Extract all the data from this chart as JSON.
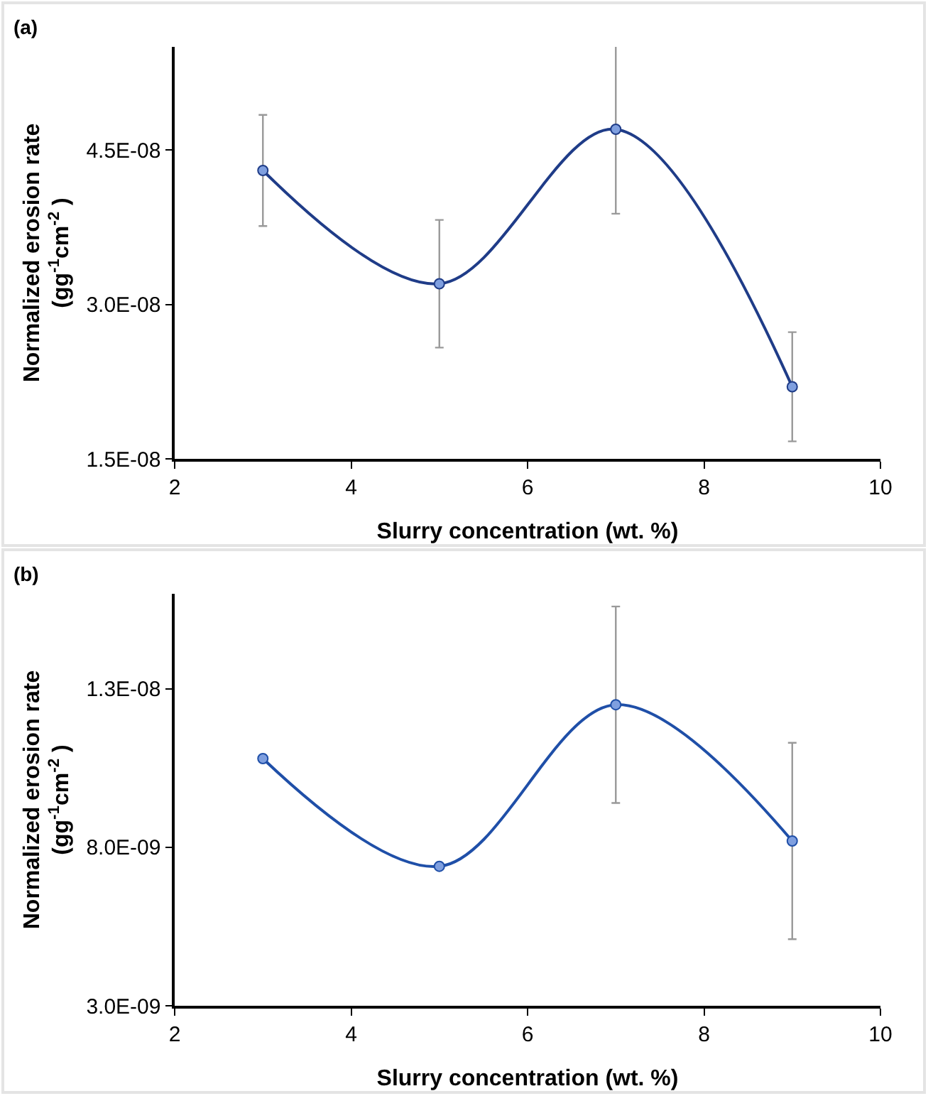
{
  "chart_data": [
    {
      "type": "line",
      "title": "(a)",
      "xlabel": "Slurry concentration (wt. %)",
      "ylabel": "Normalized erosion rate (gg$^{-1}$cm$^{-2}$ )",
      "x": [
        3,
        5,
        7,
        9
      ],
      "series": [
        {
          "color": "#1f3c88",
          "values": [
            4.3e-08,
            3.2e-08,
            4.7e-08,
            2.2e-08
          ],
          "errors": [
            5.4e-09,
            6.2e-09,
            8.2e-09,
            5.3e-09
          ]
        }
      ],
      "xlim": [
        2,
        10
      ],
      "xticks": [
        2,
        4,
        6,
        8,
        10
      ],
      "ylim": [
        1.5e-08,
        5.5e-08
      ],
      "yticks": [
        {
          "value": 1.5e-08,
          "label": "1.5E-08"
        },
        {
          "value": 3e-08,
          "label": "3.0E-08"
        },
        {
          "value": 4.5e-08,
          "label": "4.5E-08"
        }
      ],
      "grid": false,
      "marker": "circle",
      "line_style": "solid"
    },
    {
      "type": "line",
      "title": "(b)",
      "xlabel": "Slurry concentration (wt. %)",
      "ylabel": "Normalized erosion rate (gg$^{-1}$cm$^{-2}$ )",
      "x": [
        3,
        5,
        7,
        9
      ],
      "series": [
        {
          "color": "#1f4fa8",
          "values": [
            1.08e-08,
            7.4e-09,
            1.25e-08,
            8.2e-09
          ],
          "errors": [
            null,
            null,
            3.1e-09,
            3.1e-09
          ]
        }
      ],
      "xlim": [
        2,
        10
      ],
      "xticks": [
        2,
        4,
        6,
        8,
        10
      ],
      "ylim": [
        3e-09,
        1.6e-08
      ],
      "yticks": [
        {
          "value": 3e-09,
          "label": "3.0E-09"
        },
        {
          "value": 8e-09,
          "label": "8.0E-09"
        },
        {
          "value": 1.3e-08,
          "label": "1.3E-08"
        }
      ],
      "grid": false,
      "marker": "circle",
      "line_style": "solid"
    }
  ]
}
